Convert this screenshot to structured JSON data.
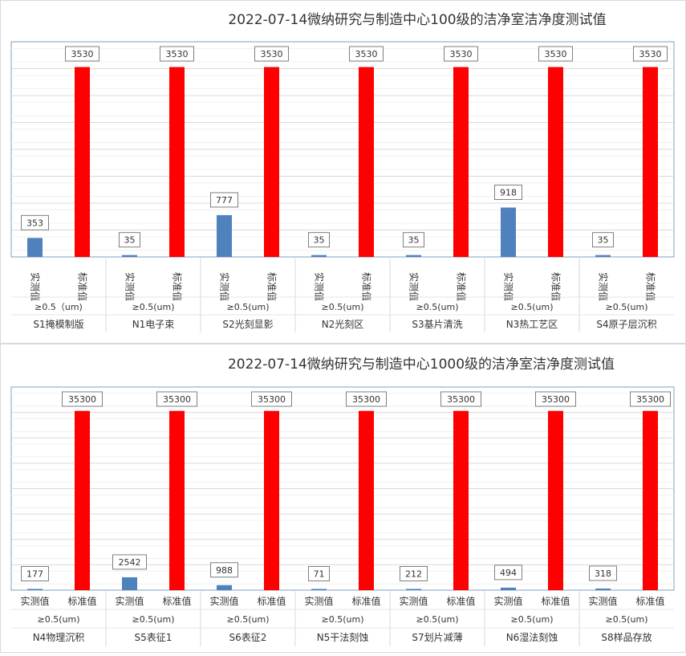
{
  "chart_data": [
    {
      "type": "bar",
      "title": "2022-07-14微纳研究与制造中心100级的洁净室洁净度测试值",
      "ylim": [
        0,
        4000
      ],
      "grid": true,
      "series": [
        {
          "name": "实测值",
          "values": [
            353,
            35,
            777,
            35,
            35,
            918,
            35
          ]
        },
        {
          "name": "标准值",
          "values": [
            3530,
            3530,
            3530,
            3530,
            3530,
            3530,
            3530
          ]
        }
      ],
      "particle_labels": [
        "≥0.5（um)",
        "≥0.5(um)",
        "≥0.5(um)",
        "≥0.5(um)",
        "≥0.5(um)",
        "≥0.5(um)",
        "≥0.5(um)"
      ],
      "categories": [
        "S1掩模制版",
        "N1电子束",
        "S2光刻显影",
        "N2光刻区",
        "S3基片清洗",
        "N3热工艺区",
        "S4原子层沉积"
      ],
      "colors": {
        "measured": "#4f81bd",
        "standard": "#ff0000"
      }
    },
    {
      "type": "bar",
      "title": "2022-07-14微纳研究与制造中心1000级的洁净室洁净度测试值",
      "ylim": [
        0,
        40000
      ],
      "grid": true,
      "series": [
        {
          "name": "实测值",
          "values": [
            177,
            2542,
            988,
            71,
            212,
            494,
            318
          ]
        },
        {
          "name": "标准值",
          "values": [
            35300,
            35300,
            35300,
            35300,
            35300,
            35300,
            35300
          ]
        }
      ],
      "particle_labels": [
        "≥0.5(um)",
        "≥0.5(um)",
        "≥0.5(um)",
        "≥0.5(um)",
        "≥0.5(um)",
        "≥0.5(um)",
        "≥0.5(um)"
      ],
      "categories": [
        "N4物理沉积",
        "S5表征1",
        "S6表征2",
        "N5干法刻蚀",
        "S7划片减薄",
        "N6湿法刻蚀",
        "S8样品存放"
      ],
      "colors": {
        "measured": "#4f81bd",
        "standard": "#ff0000"
      }
    }
  ]
}
